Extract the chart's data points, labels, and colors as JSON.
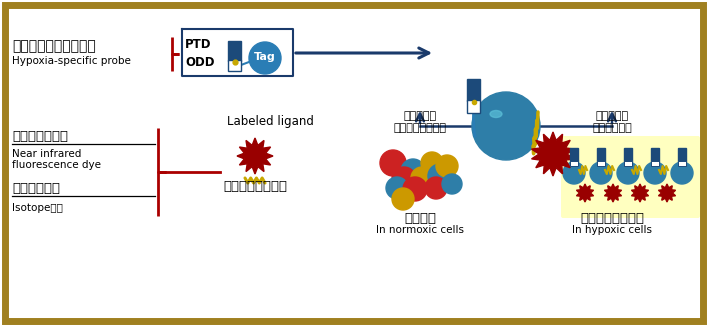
{
  "bg_color": "#ffffff",
  "border_color": "#a08020",
  "border_lw": 4,
  "fig_w": 7.08,
  "fig_h": 3.26,
  "dpi": 100,
  "text_hypoxia_jp": "低酸素特異的プローブ",
  "text_hypoxia_en": "Hypoxia-specific probe",
  "text_PTD": "PTD",
  "text_ODD": "ODD",
  "text_Tag": "Tag",
  "text_labeled": "Labeled ligand",
  "text_signal_jp": "シグナル発信部位",
  "text_nir_jp": "近赤外茕光色素",
  "text_nir_en1": "Near infrared",
  "text_nir_en2": "fluorescence dye",
  "text_radio_jp": "放射性化合物",
  "text_radio_en": "Isotopeなど",
  "text_probe_normal_jp1": "プローブが",
  "text_probe_normal_jp2": "分解してなくなる",
  "text_probe_hypo_jp1": "プローブが",
  "text_probe_hypo_jp2": "蓄積して光る",
  "text_normal_jp": "正常細菞",
  "text_normal_en": "In normoxic cells",
  "text_hypo_jp": "低酸素状態の細菞",
  "text_hypo_en": "In hypoxic cells",
  "navy": "#1a3a6b",
  "dark_navy": "#1c2d5e",
  "red_bracket": "#aa0000",
  "gold": "#c8a800",
  "yellow_light": "#ffffc0",
  "blue_sphere": "#2e7ea8",
  "blue_dark": "#1c4a7a",
  "red_star": "#990000",
  "teal_tag": "#2a7db5"
}
